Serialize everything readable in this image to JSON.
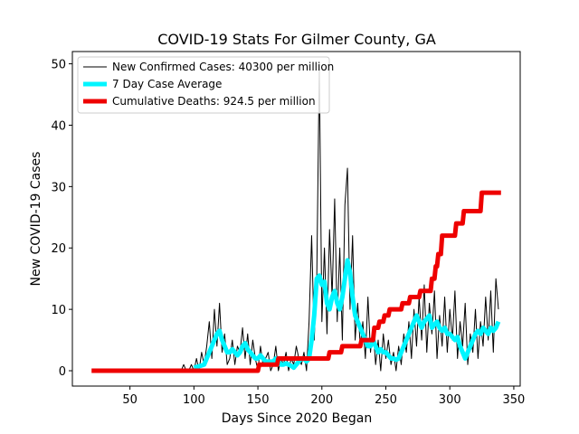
{
  "chart_data": {
    "type": "line",
    "title": "COVID-19 Stats For Gilmer County, GA",
    "xlabel": "Days Since 2020 Began",
    "ylabel": "New COVID-19 Cases",
    "xlim": [
      5,
      355
    ],
    "ylim": [
      -2.5,
      52
    ],
    "xticks": [
      50,
      100,
      150,
      200,
      250,
      300,
      350
    ],
    "yticks": [
      0,
      10,
      20,
      30,
      40,
      50
    ],
    "grid": false,
    "legend_position": "top-left",
    "series": [
      {
        "name": "New Confirmed Cases: 40300 per million",
        "color": "#000000",
        "linewidth": 1,
        "points": [
          [
            90,
            0
          ],
          [
            92,
            1
          ],
          [
            94,
            0
          ],
          [
            96,
            0
          ],
          [
            98,
            1
          ],
          [
            100,
            0
          ],
          [
            102,
            2
          ],
          [
            104,
            0
          ],
          [
            106,
            3
          ],
          [
            108,
            1
          ],
          [
            110,
            4
          ],
          [
            112,
            8
          ],
          [
            114,
            2
          ],
          [
            116,
            10
          ],
          [
            118,
            4
          ],
          [
            120,
            11
          ],
          [
            122,
            3
          ],
          [
            124,
            6
          ],
          [
            126,
            1
          ],
          [
            128,
            2
          ],
          [
            130,
            5
          ],
          [
            132,
            1
          ],
          [
            134,
            4
          ],
          [
            136,
            3
          ],
          [
            138,
            7
          ],
          [
            140,
            2
          ],
          [
            142,
            6
          ],
          [
            144,
            1
          ],
          [
            146,
            5
          ],
          [
            148,
            2
          ],
          [
            150,
            0
          ],
          [
            152,
            4
          ],
          [
            154,
            1
          ],
          [
            156,
            2
          ],
          [
            158,
            3
          ],
          [
            160,
            0
          ],
          [
            162,
            1
          ],
          [
            164,
            4
          ],
          [
            166,
            0
          ],
          [
            168,
            2
          ],
          [
            170,
            1
          ],
          [
            172,
            3
          ],
          [
            174,
            0
          ],
          [
            176,
            2
          ],
          [
            178,
            1
          ],
          [
            180,
            4
          ],
          [
            182,
            2
          ],
          [
            184,
            1
          ],
          [
            186,
            3
          ],
          [
            188,
            0
          ],
          [
            190,
            8
          ],
          [
            192,
            22
          ],
          [
            194,
            5
          ],
          [
            196,
            15
          ],
          [
            198,
            50
          ],
          [
            200,
            8
          ],
          [
            202,
            20
          ],
          [
            204,
            6
          ],
          [
            206,
            23
          ],
          [
            208,
            12
          ],
          [
            210,
            28
          ],
          [
            212,
            8
          ],
          [
            214,
            20
          ],
          [
            216,
            5
          ],
          [
            218,
            27
          ],
          [
            220,
            33
          ],
          [
            222,
            10
          ],
          [
            224,
            22
          ],
          [
            226,
            5
          ],
          [
            228,
            11
          ],
          [
            230,
            4
          ],
          [
            232,
            8
          ],
          [
            234,
            2
          ],
          [
            236,
            12
          ],
          [
            238,
            3
          ],
          [
            240,
            7
          ],
          [
            242,
            1
          ],
          [
            244,
            5
          ],
          [
            246,
            0
          ],
          [
            248,
            6
          ],
          [
            250,
            2
          ],
          [
            252,
            5
          ],
          [
            254,
            1
          ],
          [
            256,
            3
          ],
          [
            258,
            0
          ],
          [
            260,
            4
          ],
          [
            262,
            1
          ],
          [
            264,
            6
          ],
          [
            266,
            3
          ],
          [
            268,
            8
          ],
          [
            270,
            2
          ],
          [
            272,
            10
          ],
          [
            274,
            4
          ],
          [
            276,
            12
          ],
          [
            278,
            5
          ],
          [
            280,
            14
          ],
          [
            282,
            3
          ],
          [
            284,
            11
          ],
          [
            286,
            6
          ],
          [
            288,
            13
          ],
          [
            290,
            2
          ],
          [
            292,
            9
          ],
          [
            294,
            4
          ],
          [
            296,
            12
          ],
          [
            298,
            3
          ],
          [
            300,
            10
          ],
          [
            302,
            5
          ],
          [
            304,
            13
          ],
          [
            306,
            2
          ],
          [
            308,
            8
          ],
          [
            310,
            4
          ],
          [
            312,
            11
          ],
          [
            314,
            1
          ],
          [
            316,
            6
          ],
          [
            318,
            3
          ],
          [
            320,
            10
          ],
          [
            322,
            2
          ],
          [
            324,
            8
          ],
          [
            326,
            4
          ],
          [
            328,
            12
          ],
          [
            330,
            5
          ],
          [
            332,
            13
          ],
          [
            334,
            3
          ],
          [
            336,
            15
          ],
          [
            338,
            10
          ]
        ]
      },
      {
        "name": "7 Day Case Average",
        "color": "#00f5ff",
        "linewidth": 5,
        "points": [
          [
            100,
            0.5
          ],
          [
            105,
            0.8
          ],
          [
            108,
            1
          ],
          [
            110,
            2
          ],
          [
            112,
            3
          ],
          [
            114,
            4
          ],
          [
            116,
            5
          ],
          [
            118,
            6
          ],
          [
            120,
            6.5
          ],
          [
            122,
            5
          ],
          [
            124,
            4
          ],
          [
            126,
            3
          ],
          [
            128,
            3
          ],
          [
            130,
            3.5
          ],
          [
            132,
            3
          ],
          [
            134,
            2.5
          ],
          [
            136,
            3
          ],
          [
            138,
            4
          ],
          [
            140,
            4.5
          ],
          [
            142,
            3.5
          ],
          [
            144,
            3
          ],
          [
            146,
            2.5
          ],
          [
            148,
            2
          ],
          [
            150,
            2
          ],
          [
            152,
            2.5
          ],
          [
            154,
            2
          ],
          [
            156,
            1.5
          ],
          [
            158,
            1.5
          ],
          [
            160,
            1.5
          ],
          [
            162,
            1.5
          ],
          [
            164,
            2
          ],
          [
            166,
            1.5
          ],
          [
            168,
            1
          ],
          [
            170,
            1
          ],
          [
            172,
            1.2
          ],
          [
            174,
            1
          ],
          [
            176,
            0.8
          ],
          [
            178,
            0.5
          ],
          [
            180,
            1
          ],
          [
            182,
            1.5
          ],
          [
            184,
            2
          ],
          [
            186,
            2
          ],
          [
            188,
            1.5
          ],
          [
            190,
            2
          ],
          [
            192,
            5
          ],
          [
            194,
            9
          ],
          [
            196,
            15
          ],
          [
            198,
            15.5
          ],
          [
            200,
            14
          ],
          [
            202,
            14.5
          ],
          [
            204,
            11
          ],
          [
            206,
            10
          ],
          [
            208,
            12
          ],
          [
            210,
            13
          ],
          [
            212,
            11
          ],
          [
            214,
            10
          ],
          [
            216,
            12
          ],
          [
            218,
            15
          ],
          [
            220,
            18
          ],
          [
            222,
            16
          ],
          [
            224,
            12
          ],
          [
            226,
            9
          ],
          [
            228,
            8
          ],
          [
            230,
            7
          ],
          [
            232,
            6
          ],
          [
            234,
            5
          ],
          [
            236,
            4
          ],
          [
            238,
            4
          ],
          [
            240,
            5
          ],
          [
            242,
            4
          ],
          [
            244,
            3
          ],
          [
            246,
            3.5
          ],
          [
            248,
            3
          ],
          [
            250,
            3
          ],
          [
            252,
            2.5
          ],
          [
            254,
            2
          ],
          [
            256,
            2
          ],
          [
            258,
            1.8
          ],
          [
            260,
            2
          ],
          [
            262,
            3
          ],
          [
            264,
            4
          ],
          [
            266,
            5
          ],
          [
            268,
            6
          ],
          [
            270,
            7
          ],
          [
            272,
            8
          ],
          [
            274,
            9
          ],
          [
            276,
            8
          ],
          [
            278,
            7
          ],
          [
            280,
            8
          ],
          [
            282,
            8.5
          ],
          [
            284,
            9
          ],
          [
            286,
            7
          ],
          [
            288,
            7.5
          ],
          [
            290,
            8
          ],
          [
            292,
            7
          ],
          [
            294,
            6.5
          ],
          [
            296,
            7
          ],
          [
            298,
            6
          ],
          [
            300,
            6
          ],
          [
            302,
            5.5
          ],
          [
            304,
            5
          ],
          [
            306,
            5.5
          ],
          [
            308,
            4
          ],
          [
            310,
            3
          ],
          [
            312,
            2
          ],
          [
            314,
            3
          ],
          [
            316,
            4
          ],
          [
            318,
            5
          ],
          [
            320,
            6
          ],
          [
            322,
            6.5
          ],
          [
            324,
            6
          ],
          [
            326,
            7
          ],
          [
            328,
            6.5
          ],
          [
            330,
            6
          ],
          [
            332,
            7
          ],
          [
            334,
            6.5
          ],
          [
            336,
            7
          ],
          [
            338,
            8
          ]
        ]
      },
      {
        "name": "Cumulative Deaths: 924.5 per million",
        "color": "#ee0000",
        "linewidth": 5,
        "step": true,
        "points": [
          [
            20,
            0
          ],
          [
            150,
            0
          ],
          [
            151,
            1
          ],
          [
            165,
            1
          ],
          [
            166,
            2
          ],
          [
            195,
            2
          ],
          [
            196,
            2
          ],
          [
            205,
            2
          ],
          [
            206,
            3
          ],
          [
            215,
            3
          ],
          [
            216,
            4
          ],
          [
            230,
            4
          ],
          [
            231,
            5
          ],
          [
            240,
            5
          ],
          [
            241,
            7
          ],
          [
            244,
            7
          ],
          [
            245,
            8
          ],
          [
            248,
            8
          ],
          [
            249,
            9
          ],
          [
            252,
            9
          ],
          [
            253,
            10
          ],
          [
            262,
            10
          ],
          [
            263,
            11
          ],
          [
            268,
            11
          ],
          [
            269,
            12
          ],
          [
            276,
            12
          ],
          [
            277,
            13
          ],
          [
            285,
            13
          ],
          [
            286,
            15
          ],
          [
            288,
            15
          ],
          [
            289,
            17
          ],
          [
            290,
            17
          ],
          [
            291,
            19
          ],
          [
            293,
            19
          ],
          [
            294,
            22
          ],
          [
            304,
            22
          ],
          [
            305,
            24
          ],
          [
            310,
            24
          ],
          [
            311,
            26
          ],
          [
            324,
            26
          ],
          [
            325,
            29
          ],
          [
            340,
            29
          ]
        ]
      }
    ]
  }
}
